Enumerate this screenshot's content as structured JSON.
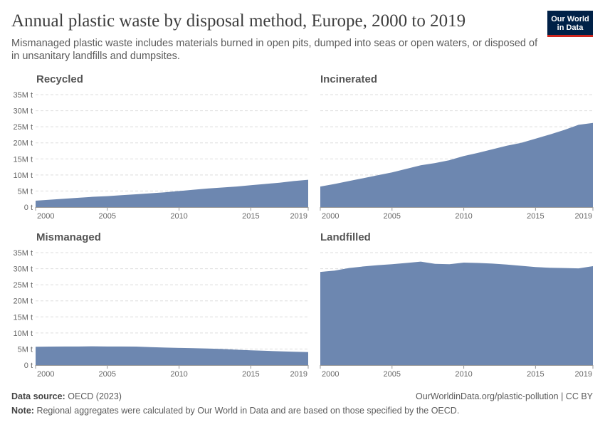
{
  "header": {
    "title": "Annual plastic waste by disposal method, Europe, 2000 to 2019",
    "subtitle": "Mismanaged plastic waste includes materials burned in open pits, dumped into seas or open waters, or disposed of in unsanitary landfills and dumpsites."
  },
  "logo": {
    "line1": "Our World",
    "line2": "in Data"
  },
  "footer": {
    "source_label": "Data source:",
    "source_value": "OECD (2023)",
    "url": "OurWorldinData.org/plastic-pollution | CC BY",
    "note_label": "Note:",
    "note_value": "Regional aggregates were calculated by Our World in Data and are based on those specified by the OECD."
  },
  "colors": {
    "area": "#6d87b0",
    "grid": "#dddddd",
    "axis": "#666666"
  },
  "chart_data": {
    "type": "area",
    "ylim": [
      0,
      35000000
    ],
    "y_ticks": [
      0,
      5000000,
      10000000,
      15000000,
      20000000,
      25000000,
      30000000,
      35000000
    ],
    "y_tick_labels": [
      "0 t",
      "5M t",
      "10M t",
      "15M t",
      "20M t",
      "25M t",
      "30M t",
      "35M t"
    ],
    "x_ticks": [
      2000,
      2005,
      2010,
      2015,
      2019
    ],
    "x_tick_labels": [
      "2000",
      "2005",
      "2010",
      "2015",
      "2019"
    ],
    "x": [
      2000,
      2001,
      2002,
      2003,
      2004,
      2005,
      2006,
      2007,
      2008,
      2009,
      2010,
      2011,
      2012,
      2013,
      2014,
      2015,
      2016,
      2017,
      2018,
      2019
    ],
    "panels": [
      {
        "name": "Recycled",
        "values": [
          2000000,
          2300000,
          2600000,
          2900000,
          3200000,
          3400000,
          3700000,
          4000000,
          4300000,
          4600000,
          5000000,
          5400000,
          5800000,
          6100000,
          6400000,
          6800000,
          7200000,
          7600000,
          8100000,
          8500000
        ]
      },
      {
        "name": "Incinerated",
        "values": [
          6400000,
          7200000,
          8100000,
          9000000,
          9900000,
          10800000,
          11900000,
          13000000,
          13700000,
          14600000,
          15900000,
          16900000,
          18000000,
          19100000,
          20000000,
          21300000,
          22600000,
          24000000,
          25600000,
          26200000
        ]
      },
      {
        "name": "Mismanaged",
        "values": [
          5700000,
          5750000,
          5800000,
          5800000,
          5850000,
          5800000,
          5800000,
          5750000,
          5600000,
          5450000,
          5350000,
          5250000,
          5150000,
          5000000,
          4800000,
          4600000,
          4450000,
          4300000,
          4150000,
          4050000
        ]
      },
      {
        "name": "Landfilled",
        "values": [
          29000000,
          29400000,
          30200000,
          30700000,
          31100000,
          31400000,
          31800000,
          32200000,
          31500000,
          31400000,
          31900000,
          31800000,
          31600000,
          31300000,
          30900000,
          30500000,
          30300000,
          30200000,
          30100000,
          30800000
        ]
      }
    ]
  }
}
